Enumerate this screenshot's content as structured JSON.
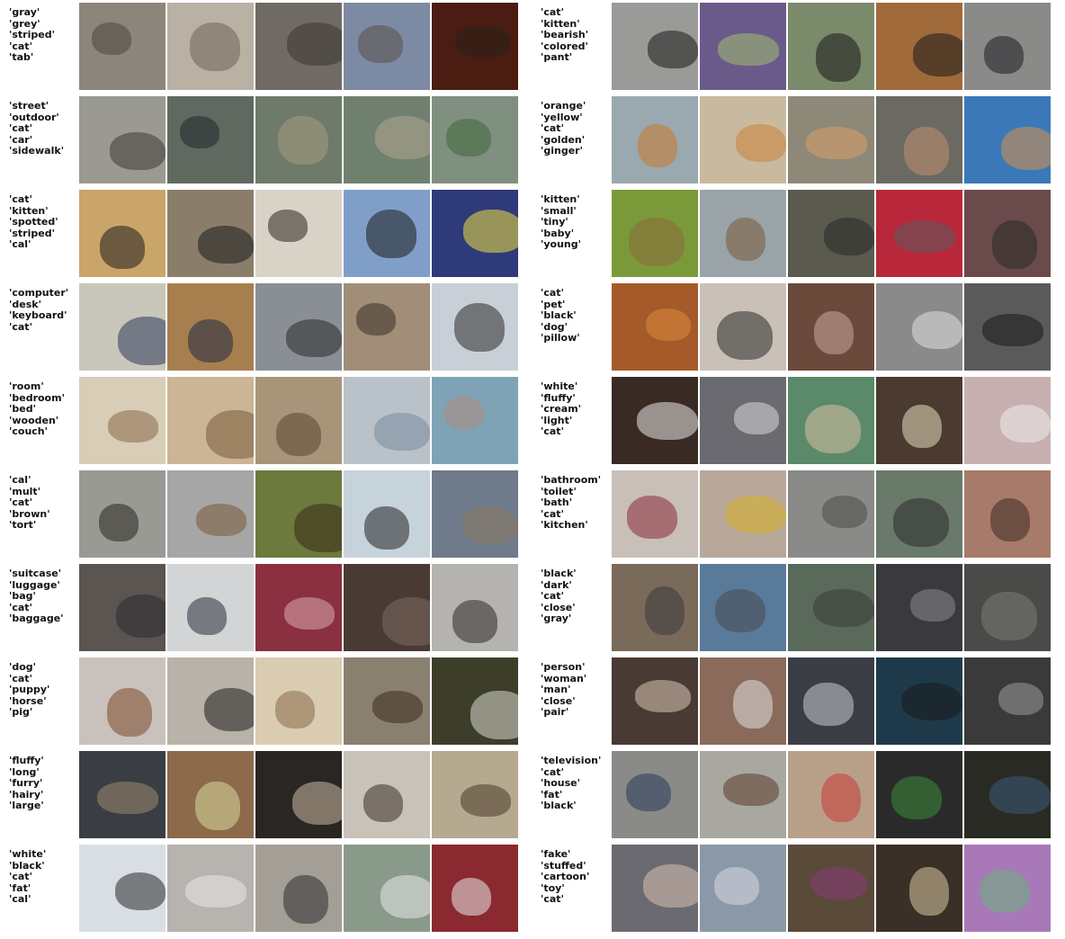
{
  "columns": [
    {
      "rows": [
        {
          "tags": [
            "'gray'",
            "'grey'",
            "'striped'",
            "'cat'",
            "'tab'"
          ],
          "images": [
            {
              "bg": "#8c857b",
              "fg": "#4d463c"
            },
            {
              "bg": "#b9b1a3",
              "fg": "#6c645a"
            },
            {
              "bg": "#6f6a63",
              "fg": "#3a3631"
            },
            {
              "bg": "#7d8aa4",
              "fg": "#5a5048"
            },
            {
              "bg": "#4a1c12",
              "fg": "#2a2218"
            }
          ]
        },
        {
          "tags": [
            "'street'",
            "'outdoor'",
            "'cat'",
            "'car'",
            "'sidewalk'"
          ],
          "images": [
            {
              "bg": "#9a9a92",
              "fg": "#3d3a34"
            },
            {
              "bg": "#5f6960",
              "fg": "#22262a"
            },
            {
              "bg": "#6e7a6a",
              "fg": "#a89a7d"
            },
            {
              "bg": "#70806f",
              "fg": "#b0a68e"
            },
            {
              "bg": "#7f8f80",
              "fg": "#3f6a3a"
            }
          ]
        },
        {
          "tags": [
            "'cat'",
            "'kitten'",
            "'spotted'",
            "'striped'",
            "'cal'"
          ],
          "images": [
            {
              "bg": "#c9a56a",
              "fg": "#1e1e1e"
            },
            {
              "bg": "#8a7e6a",
              "fg": "#1b1b1b"
            },
            {
              "bg": "#d8d3c6",
              "fg": "#2a2622"
            },
            {
              "bg": "#7f9fc9",
              "fg": "#1b1b1b"
            },
            {
              "bg": "#2f3a7a",
              "fg": "#f0e040"
            }
          ]
        },
        {
          "tags": [
            "'computer'",
            "'desk'",
            "'keyboard'",
            "'cat'"
          ],
          "images": [
            {
              "bg": "#c9c6bb",
              "fg": "#2c3a5a"
            },
            {
              "bg": "#a77f4f",
              "fg": "#1f2a44"
            },
            {
              "bg": "#8a8f95",
              "fg": "#2a2a2a"
            },
            {
              "bg": "#a08e78",
              "fg": "#3a3028"
            },
            {
              "bg": "#c9cfd6",
              "fg": "#2a2a2a"
            }
          ]
        },
        {
          "tags": [
            "'room'",
            "'bedroom'",
            "'bed'",
            "'wooden'",
            "'couch'"
          ],
          "images": [
            {
              "bg": "#d8cdb6",
              "fg": "#8a6a4a"
            },
            {
              "bg": "#cbb596",
              "fg": "#7a5a3a"
            },
            {
              "bg": "#a89478",
              "fg": "#5a4630"
            },
            {
              "bg": "#b9c2c9",
              "fg": "#7a8a9a"
            },
            {
              "bg": "#7fa3b5",
              "fg": "#b08a7a"
            }
          ]
        },
        {
          "tags": [
            "'cal'",
            "'mult'",
            "'cat'",
            "'brown'",
            "'tort'"
          ],
          "images": [
            {
              "bg": "#9a9a95",
              "fg": "#2a2620"
            },
            {
              "bg": "#a5a6a5",
              "fg": "#7a5a3a"
            },
            {
              "bg": "#6c7a3d",
              "fg": "#3a2a1a"
            },
            {
              "bg": "#c7d3db",
              "fg": "#222222"
            },
            {
              "bg": "#6f7a8a",
              "fg": "#8a7a60"
            }
          ]
        },
        {
          "tags": [
            "'suitcase'",
            "'luggage'",
            "'bag'",
            "'cat'",
            "'baggage'"
          ],
          "images": [
            {
              "bg": "#5a5550",
              "fg": "#2a2a30"
            },
            {
              "bg": "#d2d4d6",
              "fg": "#2a2e3a"
            },
            {
              "bg": "#8a3040",
              "fg": "#d8a8b0"
            },
            {
              "bg": "#4a3a34",
              "fg": "#7a6a60"
            },
            {
              "bg": "#b5b3b0",
              "fg": "#2a2a2a"
            }
          ]
        },
        {
          "tags": [
            "'dog'",
            "'cat'",
            "'puppy'",
            "'horse'",
            "'pig'"
          ],
          "images": [
            {
              "bg": "#c9c2bc",
              "fg": "#7a4a2a"
            },
            {
              "bg": "#b8b2a8",
              "fg": "#1e1e1e"
            },
            {
              "bg": "#d9ccb0",
              "fg": "#8a6a4a"
            },
            {
              "bg": "#8a8070",
              "fg": "#3a2a1e"
            },
            {
              "bg": "#3c3e2a",
              "fg": "#d8d8d0"
            }
          ]
        },
        {
          "tags": [
            "'fluffy'",
            "'long'",
            "'furry'",
            "'hairy'",
            "'large'"
          ],
          "images": [
            {
              "bg": "#3b3d44",
              "fg": "#9a8a70"
            },
            {
              "bg": "#8c6a4a",
              "fg": "#d8d8a0"
            },
            {
              "bg": "#2a2624",
              "fg": "#c8b8a0"
            },
            {
              "bg": "#c8c2b8",
              "fg": "#3a3028"
            },
            {
              "bg": "#b5a990",
              "fg": "#4a3a2a"
            }
          ]
        },
        {
          "tags": [
            "'white'",
            "'black'",
            "'cat'",
            "'fat'",
            "'cal'"
          ],
          "images": [
            {
              "bg": "#d9dee4",
              "fg": "#2a2a2a"
            },
            {
              "bg": "#b7b3ae",
              "fg": "#e8e8e8"
            },
            {
              "bg": "#a39e96",
              "fg": "#2e2e2e"
            },
            {
              "bg": "#8a9a8a",
              "fg": "#e8e8e8"
            },
            {
              "bg": "#8a2a30",
              "fg": "#eaeaea"
            }
          ]
        }
      ]
    },
    {
      "rows": [
        {
          "tags": [
            "'cat'",
            "'kitten'",
            "'bearish'",
            "'colored'",
            "'pant'"
          ],
          "images": [
            {
              "bg": "#9a9a98",
              "fg": "#1a1a1a"
            },
            {
              "bg": "#6a5a8a",
              "fg": "#a0c070"
            },
            {
              "bg": "#7a8a6a",
              "fg": "#1a1a1a"
            },
            {
              "bg": "#a06a3a",
              "fg": "#1a1a1a"
            },
            {
              "bg": "#8a8a88",
              "fg": "#1e1e22"
            }
          ]
        },
        {
          "tags": [
            "'orange'",
            "'yellow'",
            "'cat'",
            "'golden'",
            "'ginger'"
          ],
          "images": [
            {
              "bg": "#9aa8b0",
              "fg": "#c8782a"
            },
            {
              "bg": "#c9b99e",
              "fg": "#c8843a"
            },
            {
              "bg": "#8e8878",
              "fg": "#d8a06a"
            },
            {
              "bg": "#6a6a62",
              "fg": "#c09070"
            },
            {
              "bg": "#3a78b8",
              "fg": "#d8904a"
            }
          ]
        },
        {
          "tags": [
            "'kitten'",
            "'small'",
            "'tiny'",
            "'baby'",
            "'young'"
          ],
          "images": [
            {
              "bg": "#7a9a3a",
              "fg": "#8a6a3a"
            },
            {
              "bg": "#9aa4a8",
              "fg": "#7a5a3a"
            },
            {
              "bg": "#5a5a4e",
              "fg": "#2a2a2a"
            },
            {
              "bg": "#b8283a",
              "fg": "#5a5a60"
            },
            {
              "bg": "#6a4a4a",
              "fg": "#2a2a2a"
            }
          ]
        },
        {
          "tags": [
            "'cat'",
            "'pet'",
            "'black'",
            "'dog'",
            "'pillow'"
          ],
          "images": [
            {
              "bg": "#a55a2a",
              "fg": "#d88a3a"
            },
            {
              "bg": "#c9c0b8",
              "fg": "#2a2a2a"
            },
            {
              "bg": "#6a4a3a",
              "fg": "#c8a8a0"
            },
            {
              "bg": "#8a8a8a",
              "fg": "#e0e0e0"
            },
            {
              "bg": "#5a5a5a",
              "fg": "#1a1a1a"
            }
          ]
        },
        {
          "tags": [
            "'white'",
            "'fluffy'",
            "'cream'",
            "'light'",
            "'cat'"
          ],
          "images": [
            {
              "bg": "#3a2a24",
              "fg": "#e8e8e8"
            },
            {
              "bg": "#6a6a70",
              "fg": "#d8d8d8"
            },
            {
              "bg": "#5a8a6a",
              "fg": "#d8c0a0"
            },
            {
              "bg": "#4a3a30",
              "fg": "#e8dcc0"
            },
            {
              "bg": "#c8b0b0",
              "fg": "#ececec"
            }
          ]
        },
        {
          "tags": [
            "'bathroom'",
            "'toilet'",
            "'bath'",
            "'cat'",
            "'kitchen'"
          ],
          "images": [
            {
              "bg": "#c8c0b8",
              "fg": "#8a2a3a"
            },
            {
              "bg": "#b8a89a",
              "fg": "#d8b028"
            },
            {
              "bg": "#8a8a88",
              "fg": "#4a4a48"
            },
            {
              "bg": "#6a7a6a",
              "fg": "#2a2a2a"
            },
            {
              "bg": "#a87a6a",
              "fg": "#3a2a20"
            }
          ]
        },
        {
          "tags": [
            "'black'",
            "'dark'",
            "'cat'",
            "'close'",
            "'gray'"
          ],
          "images": [
            {
              "bg": "#7a6a5a",
              "fg": "#3a3a3e"
            },
            {
              "bg": "#5a7a9a",
              "fg": "#4a4a50"
            },
            {
              "bg": "#5a6a5a",
              "fg": "#3a3a3a"
            },
            {
              "bg": "#3a3a3e",
              "fg": "#8a8a8a"
            },
            {
              "bg": "#4a4a48",
              "fg": "#7a7a74"
            }
          ]
        },
        {
          "tags": [
            "'person'",
            "'woman'",
            "'man'",
            "'close'",
            "'pair'"
          ],
          "images": [
            {
              "bg": "#4a3a34",
              "fg": "#d8c8b8"
            },
            {
              "bg": "#8a6a5a",
              "fg": "#e0e0e0"
            },
            {
              "bg": "#3a3e44",
              "fg": "#c8ccd0"
            },
            {
              "bg": "#1e3a4a",
              "fg": "#1a1a1a"
            },
            {
              "bg": "#3a3a3a",
              "fg": "#9a9a9a"
            }
          ]
        },
        {
          "tags": [
            "'television'",
            "'cat'",
            "'house'",
            "'fat'",
            "'black'"
          ],
          "images": [
            {
              "bg": "#8a8a88",
              "fg": "#2a3a5a"
            },
            {
              "bg": "#a8a8a0",
              "fg": "#5a3a2a"
            },
            {
              "bg": "#b8a088",
              "fg": "#c83a3a"
            },
            {
              "bg": "#2a2a2a",
              "fg": "#3a8a3a"
            },
            {
              "bg": "#2a2a24",
              "fg": "#3a5a7a"
            }
          ]
        },
        {
          "tags": [
            "'fake'",
            "'stuffed'",
            "'cartoon'",
            "'toy'",
            "'cat'"
          ],
          "images": [
            {
              "bg": "#6a6a70",
              "fg": "#d8c0b0"
            },
            {
              "bg": "#8a98a8",
              "fg": "#d8d8e0"
            },
            {
              "bg": "#5a4a3a",
              "fg": "#8a3a7a"
            },
            {
              "bg": "#3a3028",
              "fg": "#d8c8a0"
            },
            {
              "bg": "#a878b8",
              "fg": "#6ab078"
            }
          ]
        }
      ]
    }
  ]
}
